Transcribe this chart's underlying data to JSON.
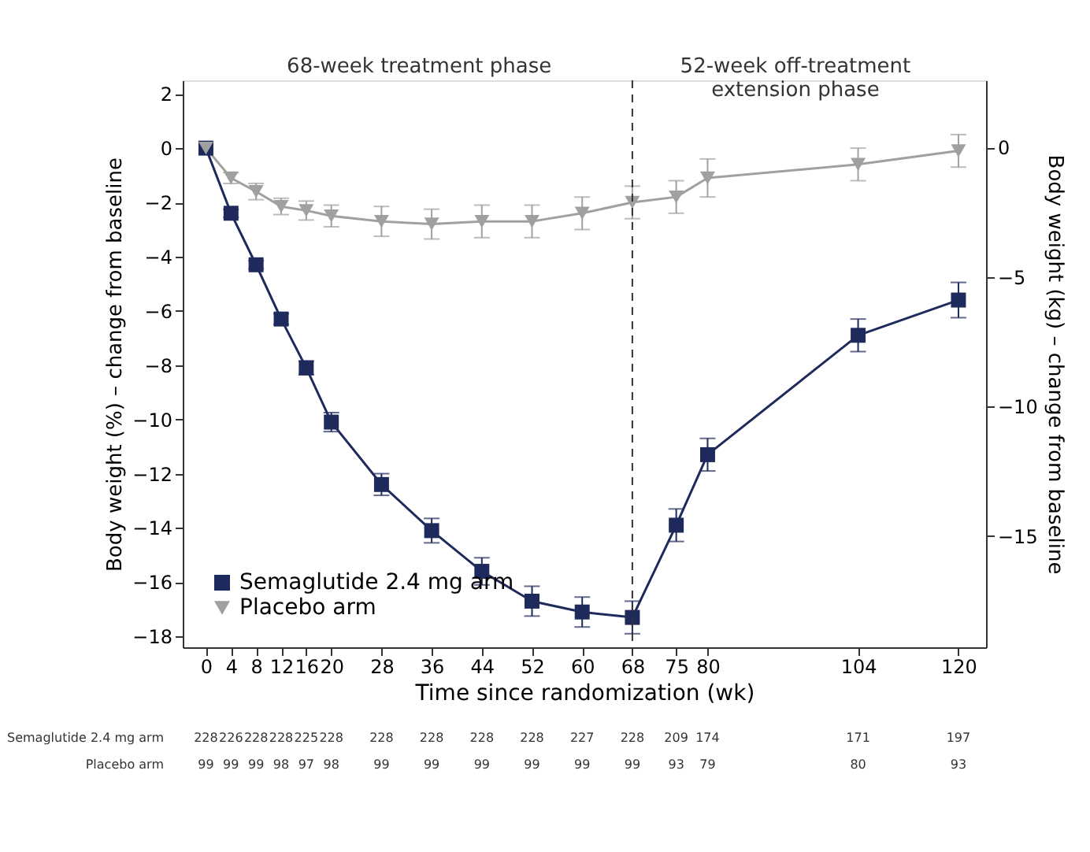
{
  "chart_data": {
    "type": "line",
    "xlabel": "Time since randomization (wk)",
    "ylabel": "Body weight (%) – change from baseline",
    "y2label": "Body weight (kg) – change from baseline",
    "x": [
      0,
      4,
      8,
      12,
      16,
      20,
      28,
      36,
      44,
      52,
      60,
      68,
      75,
      80,
      104,
      120
    ],
    "series": [
      {
        "name": "Semaglutide 2.4 mg arm",
        "color": "#1f2a5c",
        "marker": "square",
        "values": [
          0,
          -2.4,
          -4.3,
          -6.3,
          -8.1,
          -10.1,
          -12.4,
          -14.1,
          -15.6,
          -16.7,
          -17.1,
          -17.3,
          -13.9,
          -11.3,
          -6.9,
          -5.6
        ],
        "errors": [
          null,
          0.15,
          0.15,
          0.2,
          0.25,
          0.35,
          0.4,
          0.45,
          0.5,
          0.55,
          0.55,
          0.6,
          0.6,
          0.6,
          0.6,
          0.65
        ]
      },
      {
        "name": "Placebo arm",
        "color": "#a0a0a0",
        "marker": "triangle",
        "values": [
          0,
          -1.1,
          -1.6,
          -2.15,
          -2.3,
          -2.5,
          -2.7,
          -2.8,
          -2.7,
          -2.7,
          -2.4,
          -2.0,
          -1.8,
          -1.1,
          -0.6,
          -0.1
        ],
        "errors": [
          null,
          0.2,
          0.3,
          0.3,
          0.35,
          0.4,
          0.55,
          0.55,
          0.6,
          0.6,
          0.6,
          0.6,
          0.6,
          0.7,
          0.6,
          0.6
        ]
      }
    ],
    "xlim": [
      -3.7,
      124.4
    ],
    "xticks": [
      0,
      4,
      8,
      12,
      16,
      20,
      28,
      36,
      44,
      52,
      60,
      68,
      75,
      80,
      104,
      120
    ],
    "ylim": [
      -18.4,
      2.5
    ],
    "yticks": [
      2,
      0,
      -2,
      -4,
      -6,
      -8,
      -10,
      -12,
      -14,
      -16,
      -18
    ],
    "y2lim": [
      -19.3,
      2.6
    ],
    "y2ticks": [
      0,
      -5,
      -10,
      -15
    ],
    "ref_lines": [
      {
        "axis": "x",
        "value": 68,
        "line_style": "dashed",
        "color": "#333333"
      }
    ],
    "legend": "bottom left",
    "grid": false,
    "line_style": "solid",
    "annotations": [
      "68-week treatment phase",
      "52-week off-treatment\nextension phase",
      "Semaglutide 2.4 mg arm",
      "228",
      "226",
      "228",
      "228",
      "225",
      "228",
      "228",
      "228",
      "228",
      "228",
      "227",
      "228",
      "209",
      "174",
      "171",
      "197",
      "Placebo arm",
      "99",
      "99",
      "99",
      "98",
      "97",
      "98",
      "99",
      "99",
      "99",
      "99",
      "99",
      "99",
      "93",
      "79",
      "80",
      "93"
    ]
  }
}
